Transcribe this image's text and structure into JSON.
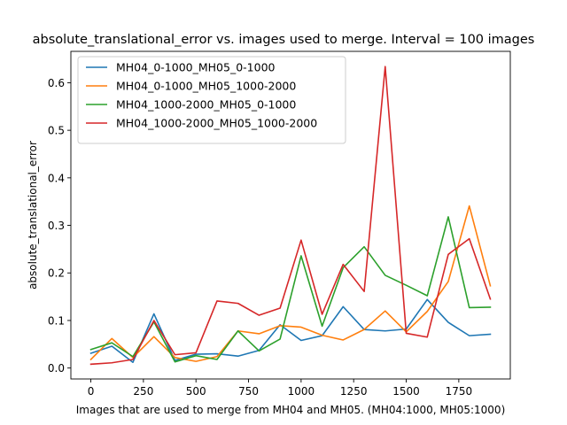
{
  "chart_data": {
    "type": "line",
    "title": "absolute_translational_error vs. images used to merge. Interval = 100 images",
    "xlabel": "Images that are used to merge from MH04 and MH05. (MH04:1000, MH05:1000)",
    "ylabel": "absolute_translational_error",
    "xlim": [
      -95,
      1995
    ],
    "ylim": [
      -0.023,
      0.666
    ],
    "xticks": [
      0,
      250,
      500,
      750,
      1000,
      1250,
      1500,
      1750
    ],
    "yticks": [
      0.0,
      0.1,
      0.2,
      0.3,
      0.4,
      0.5,
      0.6
    ],
    "x": [
      0,
      100,
      200,
      300,
      400,
      500,
      600,
      700,
      800,
      900,
      1000,
      1100,
      1200,
      1300,
      1400,
      1500,
      1600,
      1700,
      1800,
      1900
    ],
    "legend_position": "upper-left",
    "grid": false,
    "series": [
      {
        "name": "MH04_0-1000_MH05_0-1000",
        "color": "#1f77b4",
        "values": [
          0.031,
          0.046,
          0.012,
          0.114,
          0.016,
          0.029,
          0.03,
          0.025,
          0.037,
          0.091,
          0.058,
          0.068,
          0.129,
          0.081,
          0.078,
          0.082,
          0.144,
          0.096,
          0.068,
          0.071
        ]
      },
      {
        "name": "MH04_0-1000_MH05_1000-2000",
        "color": "#ff7f0e",
        "values": [
          0.018,
          0.062,
          0.022,
          0.066,
          0.022,
          0.014,
          0.024,
          0.078,
          0.072,
          0.089,
          0.086,
          0.069,
          0.059,
          0.081,
          0.12,
          0.076,
          0.119,
          0.182,
          0.341,
          0.173
        ]
      },
      {
        "name": "MH04_1000-2000_MH05_0-1000",
        "color": "#2ca02c",
        "values": [
          0.039,
          0.053,
          0.024,
          0.097,
          0.013,
          0.026,
          0.018,
          0.078,
          0.036,
          0.061,
          0.236,
          0.088,
          0.211,
          0.255,
          0.195,
          0.174,
          0.152,
          0.318,
          0.127,
          0.128
        ]
      },
      {
        "name": "MH04_1000-2000_MH05_1000-2000",
        "color": "#d62728",
        "values": [
          0.008,
          0.011,
          0.018,
          0.1,
          0.028,
          0.032,
          0.141,
          0.136,
          0.111,
          0.126,
          0.269,
          0.113,
          0.218,
          0.161,
          0.634,
          0.073,
          0.065,
          0.239,
          0.272,
          0.145
        ]
      }
    ]
  }
}
